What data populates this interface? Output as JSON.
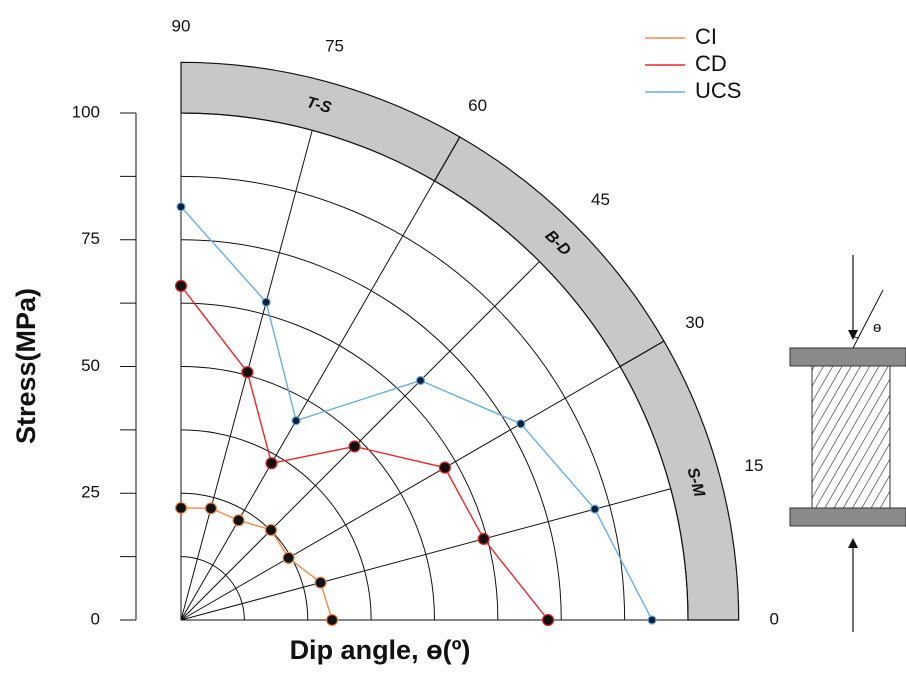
{
  "chart_data": {
    "type": "polar-line",
    "x_label": "Dip angle, ɵ(º)",
    "y_label": "Stress(MPa)",
    "categories": [
      90,
      75,
      60,
      45,
      30,
      15,
      0
    ],
    "series": [
      {
        "name": "CI",
        "color": "#f08a4b",
        "values": [
          22.1,
          22.8,
          22.7,
          25.1,
          24.5,
          28.5,
          29.8
        ]
      },
      {
        "name": "CD",
        "color": "#e8282a",
        "values": [
          65.9,
          50.6,
          35.7,
          48.4,
          60.1,
          61.8,
          72.4
        ]
      },
      {
        "name": "UCS",
        "color": "#6aaee0",
        "values": [
          81.5,
          64.9,
          45.4,
          66.8,
          77.4,
          84.5,
          92.9
        ]
      }
    ],
    "ylim": [
      0,
      100
    ],
    "yticks": [
      0,
      25,
      50,
      75,
      100
    ],
    "minor_yticks": [
      12.5,
      37.5,
      62.5,
      87.5
    ],
    "bands": [
      {
        "label": "T-S",
        "from": 90,
        "to": 60
      },
      {
        "label": "B-D",
        "from": 60,
        "to": 30
      },
      {
        "label": "S-M",
        "from": 30,
        "to": 0
      }
    ],
    "diagram_label": "ɵ"
  }
}
